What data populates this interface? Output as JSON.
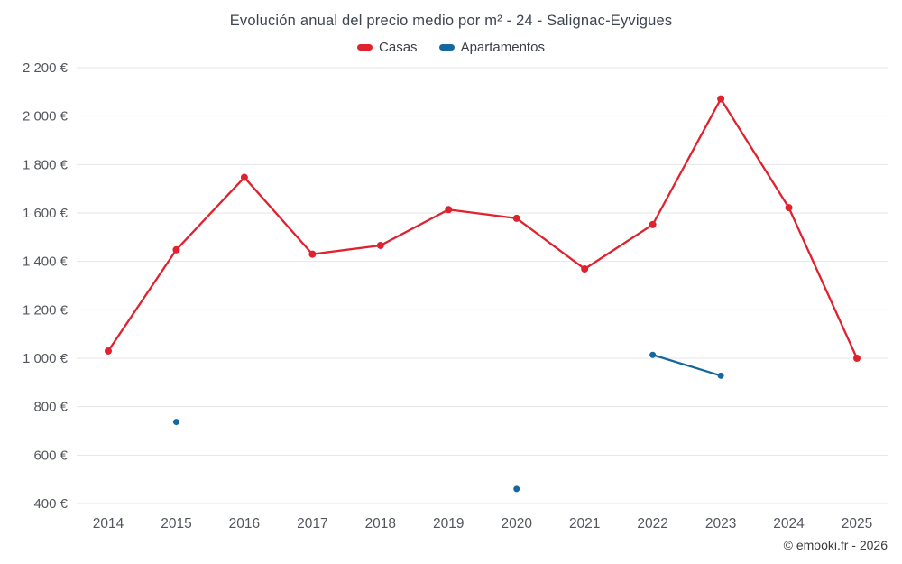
{
  "chart": {
    "title": "Evolución anual del precio medio por m² - 24 - Salignac-Eyvigues"
  },
  "legend": {
    "items": [
      {
        "label": "Casas",
        "color": "#e0212e"
      },
      {
        "label": "Apartamentos",
        "color": "#15689f"
      }
    ]
  },
  "footer": {
    "copyright": "© emooki.fr - 2026"
  },
  "chart_data": {
    "type": "line",
    "title": "Evolución anual del precio medio por m² - 24 - Salignac-Eyvigues",
    "categories": [
      "2014",
      "2015",
      "2016",
      "2017",
      "2018",
      "2019",
      "2020",
      "2021",
      "2022",
      "2023",
      "2024",
      "2025"
    ],
    "series": [
      {
        "name": "Casas",
        "color": "#e0212e",
        "values": [
          1030,
          1448,
          1747,
          1430,
          1466,
          1614,
          1578,
          1369,
          1552,
          2071,
          1622,
          1000
        ]
      },
      {
        "name": "Apartamentos",
        "color": "#15689f",
        "values": [
          null,
          737,
          null,
          null,
          null,
          null,
          460,
          null,
          1014,
          928,
          null,
          null
        ]
      }
    ],
    "ylim": [
      400,
      2200
    ],
    "y_ticks": [
      {
        "value": 400,
        "label": "400 €"
      },
      {
        "value": 600,
        "label": "600 €"
      },
      {
        "value": 800,
        "label": "800 €"
      },
      {
        "value": 1000,
        "label": "1 000 €"
      },
      {
        "value": 1200,
        "label": "1 200 €"
      },
      {
        "value": 1400,
        "label": "1 400 €"
      },
      {
        "value": 1600,
        "label": "1 600 €"
      },
      {
        "value": 1800,
        "label": "1 800 €"
      },
      {
        "value": 2000,
        "label": "2 000 €"
      },
      {
        "value": 2200,
        "label": "2 200 €"
      }
    ],
    "xlabel": "",
    "ylabel": "",
    "grid": "horizontal",
    "legend_position": "top"
  }
}
